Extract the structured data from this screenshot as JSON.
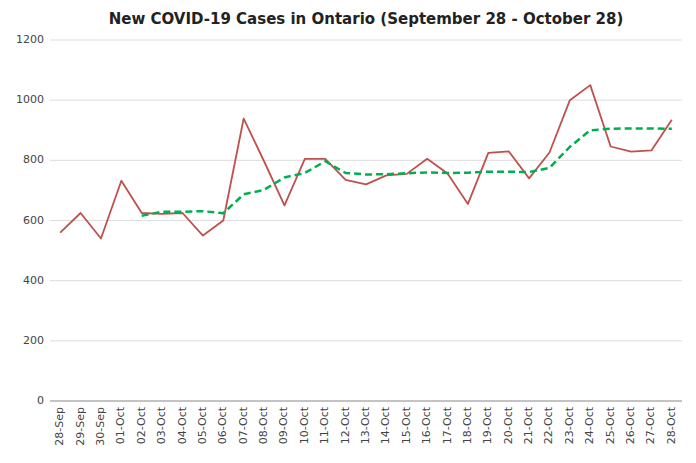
{
  "chart_data": {
    "type": "line",
    "title": "New COVID-19 Cases in Ontario (September 28 - October 28)",
    "categories": [
      "28-Sep",
      "29-Sep",
      "30-Sep",
      "01-Oct",
      "02-Oct",
      "03-Oct",
      "04-Oct",
      "05-Oct",
      "06-Oct",
      "07-Oct",
      "08-Oct",
      "09-Oct",
      "10-Oct",
      "11-Oct",
      "12-Oct",
      "13-Oct",
      "14-Oct",
      "15-Oct",
      "16-Oct",
      "17-Oct",
      "18-Oct",
      "19-Oct",
      "20-Oct",
      "21-Oct",
      "22-Oct",
      "23-Oct",
      "24-Oct",
      "25-Oct",
      "26-Oct",
      "27-Oct",
      "28-Oct"
    ],
    "series": [
      {
        "color": "#c0504d",
        "line_style": "solid",
        "values": [
          560,
          625,
          540,
          732,
          625,
          622,
          625,
          550,
          600,
          939,
          797,
          650,
          805,
          805,
          735,
          720,
          750,
          755,
          805,
          756,
          655,
          825,
          830,
          740,
          826,
          1000,
          1050,
          846,
          829,
          833,
          935
        ]
      },
      {
        "color": "#00b050",
        "line_style": "dashed",
        "values": [
          null,
          null,
          null,
          null,
          616,
          629,
          629,
          631,
          624,
          687,
          702,
          743,
          758,
          797,
          758,
          753,
          754,
          757,
          760,
          758,
          759,
          762,
          762,
          761,
          775,
          845,
          900,
          905,
          906,
          906,
          905
        ]
      }
    ],
    "ylim": [
      0,
      1200
    ],
    "yticks": [
      0,
      200,
      400,
      600,
      800,
      1000,
      1200
    ],
    "grid": true
  }
}
